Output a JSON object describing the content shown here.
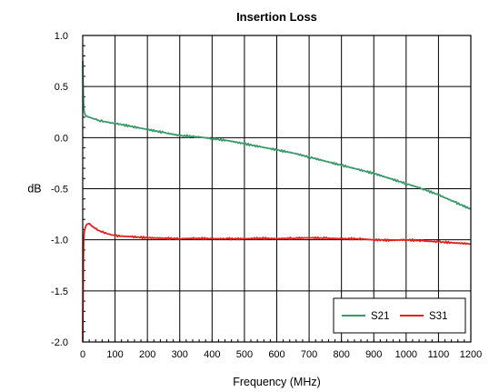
{
  "chart_data": {
    "type": "line",
    "title": "Insertion Loss",
    "xlabel": "Frequency (MHz)",
    "ylabel": "dB",
    "xlim": [
      0,
      1200
    ],
    "ylim": [
      -2.0,
      1.0
    ],
    "xticks": [
      0,
      100,
      200,
      300,
      400,
      500,
      600,
      700,
      800,
      900,
      1000,
      1100,
      1200
    ],
    "yticks": [
      -2.0,
      -1.5,
      -1.0,
      -0.5,
      0.0,
      0.5,
      1.0
    ],
    "xtick_labels": [
      "0",
      "100",
      "200",
      "300",
      "400",
      "500",
      "600",
      "700",
      "800",
      "900",
      "1000",
      "1100",
      "1200"
    ],
    "ytick_labels": [
      "-2.0",
      "-1.5",
      "-1.0",
      "-0.5",
      "0.0",
      "0.5",
      "1.0"
    ],
    "grid": true,
    "legend_position": "bottom-right",
    "series": [
      {
        "name": "S21",
        "color": "#3a9a6a",
        "x": [
          0.3,
          1,
          2,
          3,
          5,
          8,
          12,
          20,
          30,
          50,
          75,
          100,
          150,
          200,
          250,
          300,
          350,
          400,
          450,
          500,
          550,
          600,
          650,
          700,
          750,
          800,
          850,
          900,
          950,
          1000,
          1050,
          1100,
          1150,
          1200
        ],
        "y": [
          0.75,
          0.55,
          0.4,
          0.3,
          0.25,
          0.22,
          0.21,
          0.2,
          0.19,
          0.17,
          0.15,
          0.14,
          0.11,
          0.08,
          0.05,
          0.02,
          0.01,
          -0.01,
          -0.03,
          -0.06,
          -0.09,
          -0.12,
          -0.15,
          -0.19,
          -0.23,
          -0.27,
          -0.31,
          -0.35,
          -0.4,
          -0.45,
          -0.5,
          -0.56,
          -0.63,
          -0.7
        ]
      },
      {
        "name": "S31",
        "color": "#e8201c",
        "x": [
          0.3,
          1,
          2,
          3,
          5,
          8,
          12,
          20,
          30,
          50,
          75,
          100,
          150,
          200,
          250,
          300,
          350,
          400,
          450,
          500,
          550,
          600,
          650,
          700,
          750,
          800,
          850,
          900,
          950,
          1000,
          1050,
          1100,
          1150,
          1200
        ],
        "y": [
          -2.0,
          -1.6,
          -1.2,
          -1.0,
          -0.92,
          -0.88,
          -0.85,
          -0.84,
          -0.87,
          -0.91,
          -0.94,
          -0.96,
          -0.97,
          -0.98,
          -0.985,
          -0.99,
          -0.985,
          -0.99,
          -0.99,
          -0.99,
          -0.985,
          -0.99,
          -0.985,
          -0.98,
          -0.985,
          -0.99,
          -0.99,
          -1.0,
          -1.005,
          -1.0,
          -1.01,
          -1.02,
          -1.03,
          -1.04
        ]
      }
    ]
  }
}
